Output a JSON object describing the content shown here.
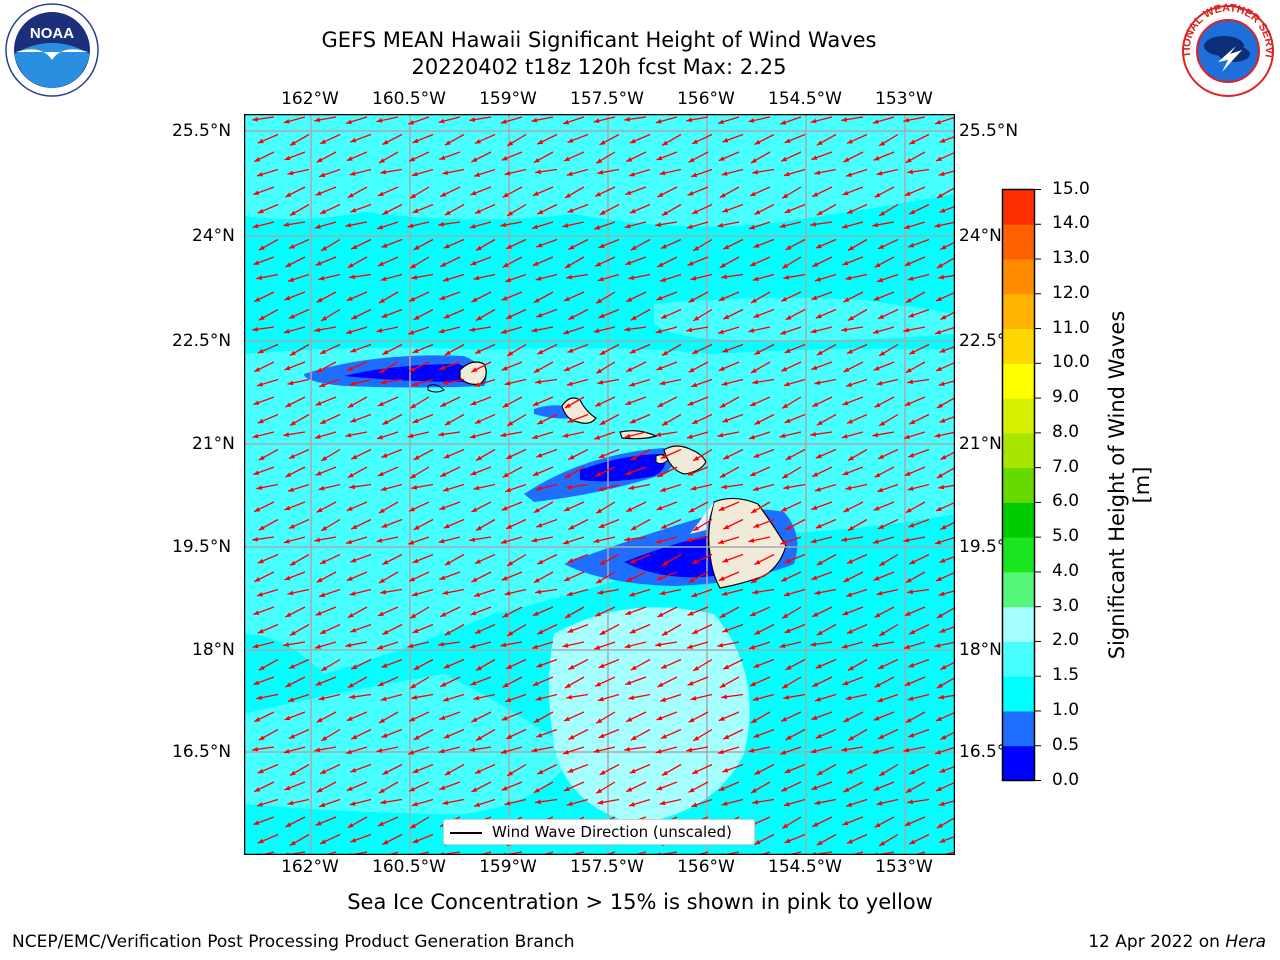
{
  "title_line1": "GEFS MEAN Hawaii Significant Height of Wind Waves",
  "title_line2": "20220402 t18z 120h fcst   Max: 2.25",
  "lon_labels": [
    "162°W",
    "160.5°W",
    "159°W",
    "157.5°W",
    "156°W",
    "154.5°W",
    "153°W"
  ],
  "lat_labels": [
    "25.5°N",
    "24°N",
    "22.5°N",
    "21°N",
    "19.5°N",
    "18°N",
    "16.5°N"
  ],
  "colorbar": {
    "title": "Significant Height of Wind Waves [m]",
    "ticks": [
      "15.0",
      "14.0",
      "13.0",
      "12.0",
      "11.0",
      "10.0",
      "9.0",
      "8.0",
      "7.0",
      "6.0",
      "5.0",
      "4.0",
      "3.0",
      "2.0",
      "1.5",
      "1.0",
      "0.5",
      "0.0"
    ],
    "colors": [
      "#0000ff",
      "#1e6fff",
      "#00ffff",
      "#47ffff",
      "#a6ffff",
      "#55f77b",
      "#19e61e",
      "#00cc00",
      "#66d900",
      "#a8e600",
      "#d4f000",
      "#ffff00",
      "#ffd700",
      "#ffb300",
      "#ff8c00",
      "#ff6000",
      "#ff3000",
      "#ff0000"
    ]
  },
  "legend_label": "Wind Wave Direction (unscaled)",
  "arrow_color": "#ff0000",
  "sea_ice_note": "Sea Ice Concentration > 15% is shown in pink to yellow",
  "footer_left": "NCEP/EMC/Verification Post Processing Product Generation Branch",
  "footer_date": "12 Apr 2022 on ",
  "footer_host": "Hera",
  "logos": {
    "left": "NOAA",
    "right": "NATIONAL WEATHER SERVICE"
  }
}
